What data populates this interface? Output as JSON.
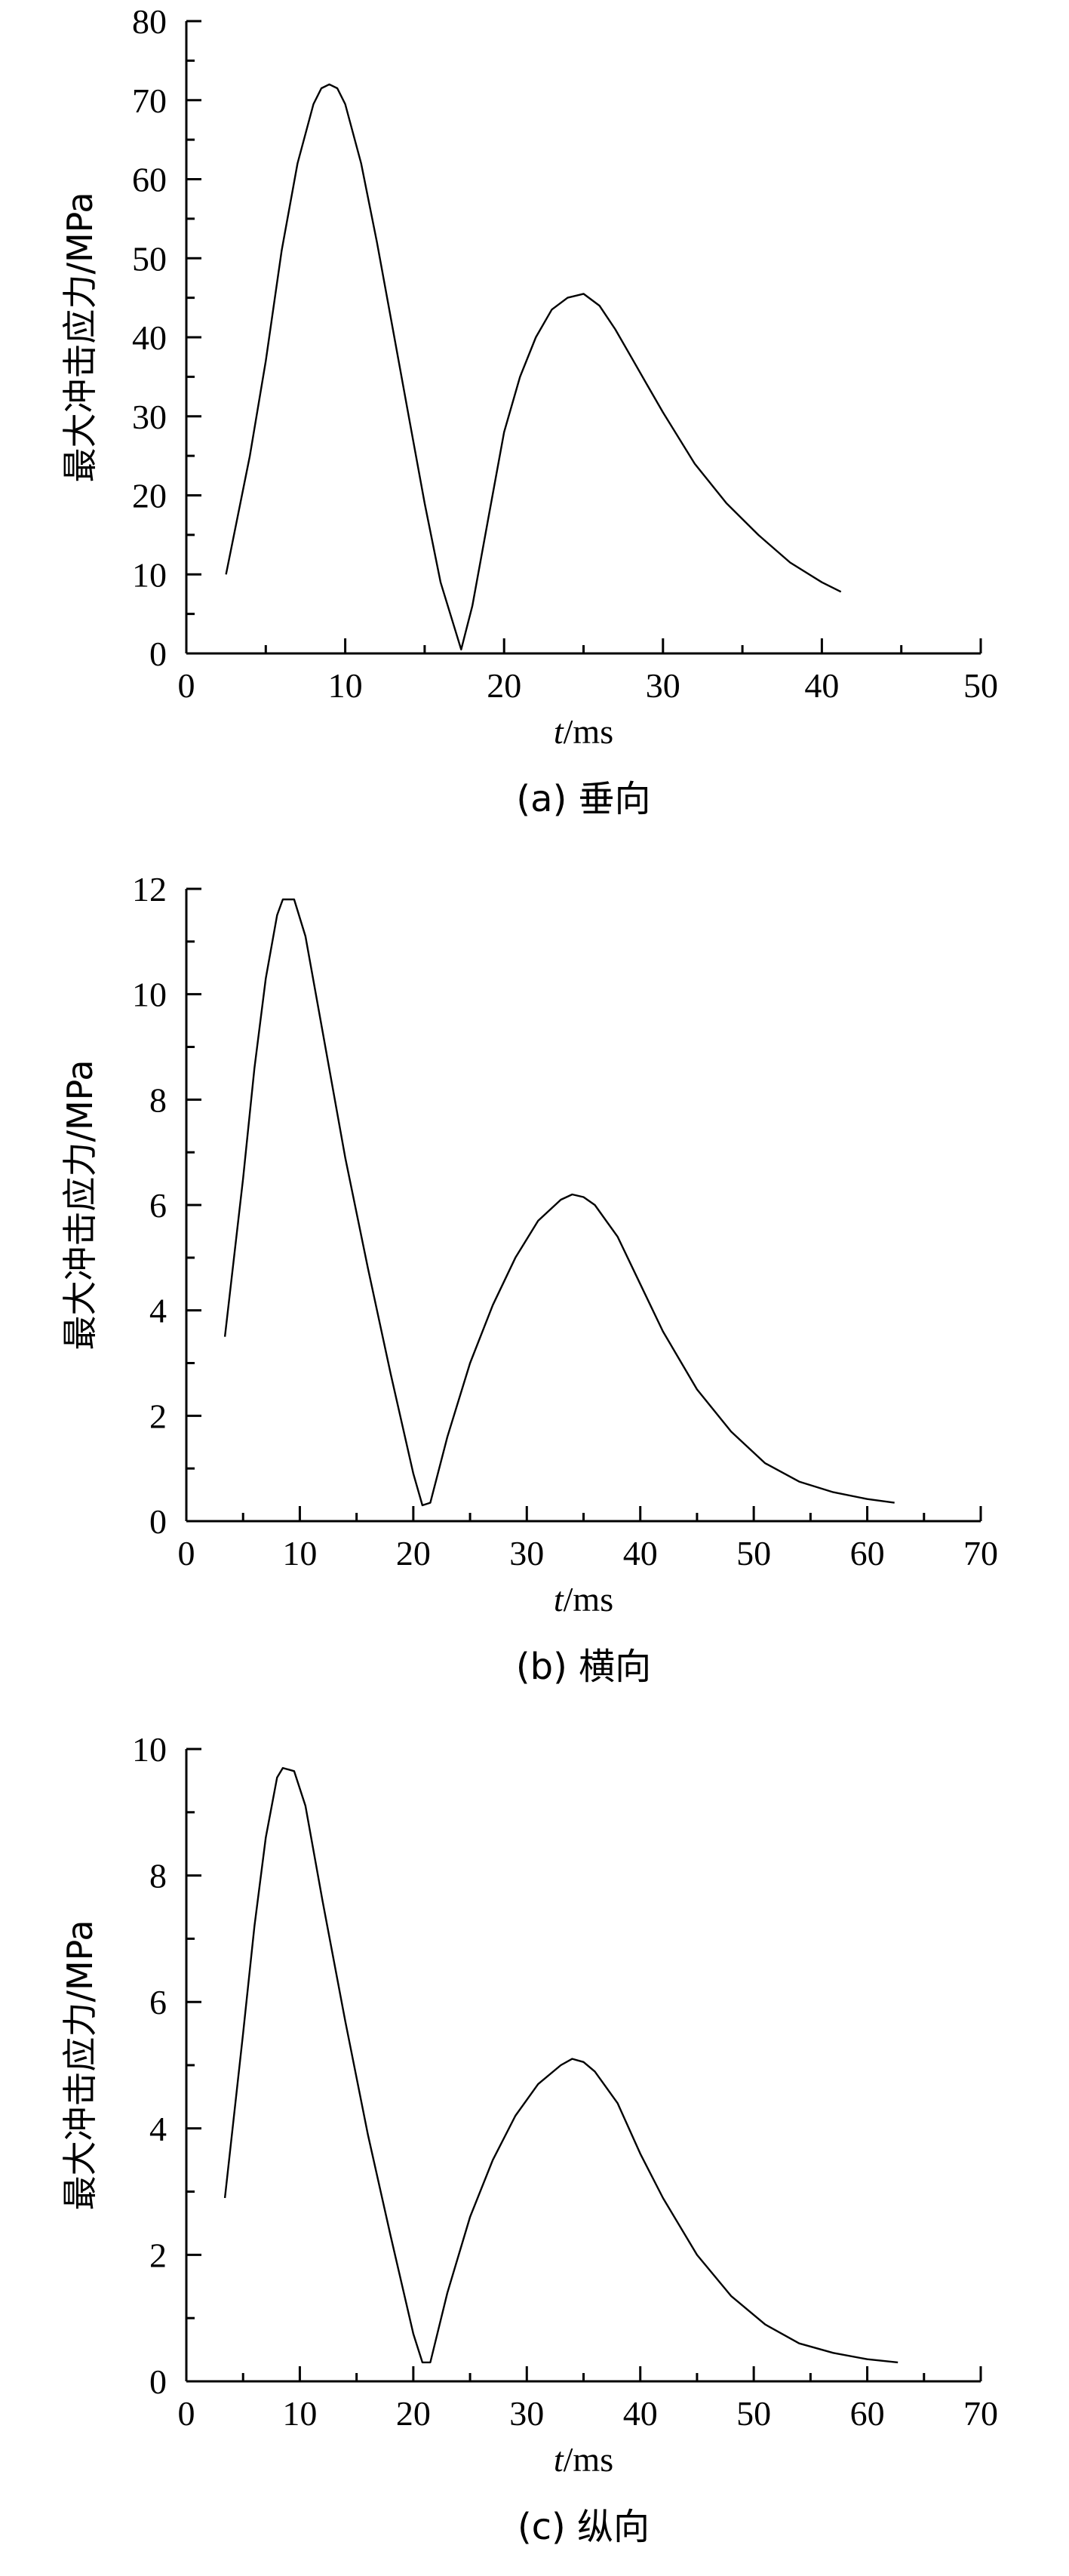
{
  "chart_data": [
    {
      "type": "line",
      "caption": "(a) 垂向",
      "xlabel_italic": "t",
      "xlabel_unit": "/ms",
      "ylabel": "最大冲击应力/MPa",
      "xlim": [
        0,
        50
      ],
      "ylim": [
        0,
        80
      ],
      "xticks": [
        "0",
        "10",
        "20",
        "30",
        "40",
        "50"
      ],
      "yticks": [
        "0",
        "10",
        "20",
        "30",
        "40",
        "50",
        "60",
        "70",
        "80"
      ],
      "series": [
        {
          "x": [
            2.5,
            4,
            5,
            6,
            7,
            8,
            8.5,
            9,
            9.5,
            10,
            11,
            12,
            13,
            14,
            15,
            16,
            17.3,
            18,
            19,
            20,
            21,
            22,
            23,
            24,
            25,
            26,
            27,
            28,
            29,
            30,
            32,
            34,
            36,
            38,
            40,
            41.2
          ],
          "y": [
            10,
            25,
            37,
            51,
            62,
            69.5,
            71.5,
            72,
            71.5,
            69.5,
            62,
            52,
            41,
            30,
            19,
            9,
            0.5,
            6,
            17,
            28,
            35,
            40,
            43.5,
            45,
            45.5,
            44,
            41,
            37.5,
            34,
            30.5,
            24,
            19,
            15,
            11.5,
            9,
            7.8
          ]
        }
      ]
    },
    {
      "type": "line",
      "caption": "(b) 横向",
      "xlabel_italic": "t",
      "xlabel_unit": "/ms",
      "ylabel": "最大冲击应力/MPa",
      "xlim": [
        0,
        70
      ],
      "ylim": [
        0,
        12
      ],
      "xticks": [
        "0",
        "10",
        "20",
        "30",
        "40",
        "50",
        "60",
        "70"
      ],
      "yticks": [
        "0",
        "2",
        "4",
        "6",
        "8",
        "10",
        "12"
      ],
      "series": [
        {
          "x": [
            3.4,
            5,
            6,
            7,
            8,
            8.5,
            9.5,
            10.5,
            12,
            14,
            16,
            18,
            20,
            20.8,
            21.5,
            23,
            25,
            27,
            29,
            31,
            33,
            34,
            35,
            36,
            38,
            40,
            42,
            45,
            48,
            51,
            54,
            57,
            60,
            62.4
          ],
          "y": [
            3.5,
            6.5,
            8.6,
            10.3,
            11.5,
            11.8,
            11.8,
            11.1,
            9.3,
            6.9,
            4.8,
            2.8,
            0.9,
            0.3,
            0.35,
            1.6,
            3.0,
            4.1,
            5.0,
            5.7,
            6.1,
            6.2,
            6.15,
            6.0,
            5.4,
            4.5,
            3.6,
            2.5,
            1.7,
            1.1,
            0.75,
            0.55,
            0.42,
            0.35
          ]
        }
      ]
    },
    {
      "type": "line",
      "caption": "(c) 纵向",
      "xlabel_italic": "t",
      "xlabel_unit": "/ms",
      "ylabel": "最大冲击应力/MPa",
      "xlim": [
        0,
        70
      ],
      "ylim": [
        0,
        10
      ],
      "xticks": [
        "0",
        "10",
        "20",
        "30",
        "40",
        "50",
        "60",
        "70"
      ],
      "yticks": [
        "0",
        "2",
        "4",
        "6",
        "8",
        "10"
      ],
      "series": [
        {
          "x": [
            3.4,
            5,
            6,
            7,
            8,
            8.5,
            9.5,
            10.5,
            12,
            14,
            16,
            18,
            20,
            20.8,
            21.5,
            23,
            25,
            27,
            29,
            31,
            33,
            34,
            35,
            36,
            38,
            40,
            42,
            45,
            48,
            51,
            54,
            57,
            60,
            62.7
          ],
          "y": [
            2.9,
            5.5,
            7.2,
            8.6,
            9.55,
            9.7,
            9.65,
            9.1,
            7.6,
            5.7,
            3.9,
            2.3,
            0.75,
            0.3,
            0.3,
            1.4,
            2.6,
            3.5,
            4.2,
            4.7,
            5.0,
            5.1,
            5.05,
            4.9,
            4.4,
            3.6,
            2.9,
            2.0,
            1.35,
            0.9,
            0.6,
            0.45,
            0.35,
            0.3
          ]
        }
      ]
    }
  ]
}
